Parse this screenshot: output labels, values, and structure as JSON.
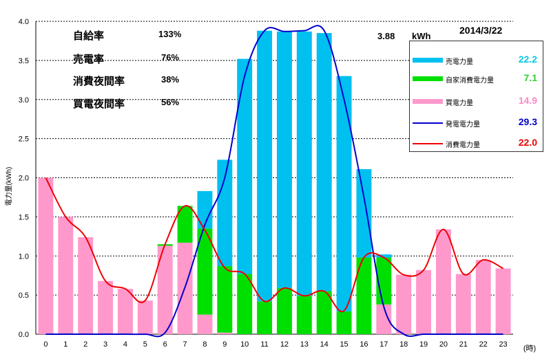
{
  "header": {
    "date": "2014/3/22",
    "peak_value": "3.88",
    "peak_unit": "kWh"
  },
  "stats": [
    {
      "label": "自給率",
      "value": "133%"
    },
    {
      "label": "売電率",
      "value": "76%"
    },
    {
      "label": "消費夜間率",
      "value": "38%"
    },
    {
      "label": "買電夜間率",
      "value": "56%"
    }
  ],
  "legend": [
    {
      "label": "売電力量",
      "total": "22.2",
      "color": "#00c0f0",
      "total_color": "#00c8e8",
      "kind": "bar"
    },
    {
      "label": "自家消費電力量",
      "total": "7.1",
      "color": "#00e000",
      "total_color": "#33cc33",
      "kind": "bar"
    },
    {
      "label": "買電力量",
      "total": "14.9",
      "color": "#ff99cc",
      "total_color": "#ff88c8",
      "kind": "bar"
    },
    {
      "label": "発電電力量",
      "total": "29.3",
      "color": "#0000cc",
      "total_color": "#0000cc",
      "kind": "line"
    },
    {
      "label": "消費電力量",
      "total": "22.0",
      "color": "#ee0000",
      "total_color": "#ee0000",
      "kind": "line"
    }
  ],
  "chart_data": {
    "type": "bar",
    "title": "",
    "xlabel": "(時)",
    "ylabel": "電力量(kWh)",
    "ylim": [
      0,
      4.0
    ],
    "yticks": [
      "0.0",
      "0.5",
      "1.0",
      "1.5",
      "2.0",
      "2.5",
      "3.0",
      "3.5",
      "4.0"
    ],
    "categories": [
      "0",
      "1",
      "2",
      "3",
      "4",
      "5",
      "6",
      "7",
      "8",
      "9",
      "10",
      "11",
      "12",
      "13",
      "14",
      "15",
      "16",
      "17",
      "18",
      "19",
      "20",
      "21",
      "22",
      "23"
    ],
    "stacked": true,
    "grid": true,
    "series": [
      {
        "name": "買電力量",
        "values": [
          2.0,
          1.5,
          1.24,
          0.68,
          0.58,
          0.43,
          1.13,
          1.17,
          0.25,
          0.02,
          0,
          0,
          0,
          0,
          0,
          0,
          0,
          0.38,
          0.76,
          0.82,
          1.34,
          0.77,
          0.95,
          0.84
        ]
      },
      {
        "name": "自家消費電力量",
        "values": [
          0,
          0,
          0,
          0,
          0,
          0,
          0.02,
          0.47,
          1.1,
          0.85,
          0.77,
          0.42,
          0.59,
          0.49,
          0.55,
          0.29,
          0.98,
          0.6,
          0,
          0,
          0,
          0,
          0,
          0
        ]
      },
      {
        "name": "売電力量",
        "values": [
          0,
          0,
          0,
          0,
          0,
          0,
          0,
          0,
          0.48,
          1.36,
          2.75,
          3.46,
          3.28,
          3.38,
          3.3,
          3.01,
          1.13,
          0.04,
          0,
          0,
          0,
          0,
          0,
          0
        ]
      },
      {
        "name": "発電電力量",
        "kind": "line",
        "values": [
          0,
          0,
          0,
          0,
          0,
          0,
          0.02,
          0.6,
          1.4,
          2.0,
          3.3,
          3.88,
          3.87,
          3.88,
          3.88,
          3.0,
          1.75,
          0.35,
          0,
          0,
          0,
          0,
          0,
          0
        ]
      },
      {
        "name": "消費電力量",
        "kind": "line",
        "values": [
          2.0,
          1.5,
          1.24,
          0.68,
          0.58,
          0.43,
          1.15,
          1.64,
          1.33,
          0.85,
          0.77,
          0.42,
          0.59,
          0.49,
          0.55,
          0.3,
          0.98,
          0.98,
          0.76,
          0.82,
          1.34,
          0.77,
          0.95,
          0.84
        ]
      }
    ]
  }
}
